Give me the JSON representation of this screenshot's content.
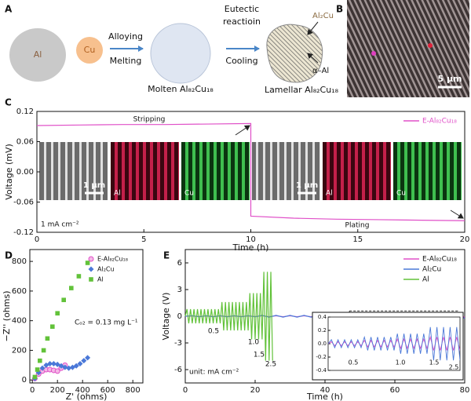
{
  "schematic": {
    "panel": "A",
    "al": "Al",
    "cu": "Cu",
    "alloying": "Alloying",
    "melting": "Melting",
    "molten": "Molten Al₈₂Cu₁₈",
    "eutectic": [
      "Eutectic",
      "reactioin"
    ],
    "cooling": "Cooling",
    "lamellar": "Lamellar Al₈₂Cu₁₈",
    "phase_al2cu": "Al₂Cu",
    "phase_al": "α–Al"
  },
  "micrograph": {
    "panel": "B",
    "scale_bar": "5 μm"
  },
  "chart_data": [
    {
      "type": "line",
      "panel": "C",
      "xlabel": "Time (h)",
      "ylabel": "Voltage (mV)",
      "xlim": [
        0,
        20
      ],
      "ylim": [
        -0.12,
        0.12
      ],
      "xticks": [
        0,
        5,
        10,
        15,
        20
      ],
      "yticks": [
        0.12,
        0.06,
        {
          "value": 0,
          "label": "0.00"
        },
        -0.06,
        -0.12
      ],
      "legend": "upper right",
      "x": [
        0,
        2,
        4,
        6,
        8,
        10,
        10,
        12,
        14,
        16,
        18,
        20
      ],
      "series": [
        {
          "name": "E-Al₈₂Cu₁₈",
          "color": "#e050c8",
          "values": [
            0.092,
            0.093,
            0.094,
            0.094,
            0.095,
            0.096,
            -0.088,
            -0.092,
            -0.094,
            -0.095,
            -0.096,
            -0.097
          ]
        }
      ],
      "annotations": [
        "Stripping",
        "Plating",
        "1 mA cm⁻²"
      ],
      "inset_labels": [
        "1 μm",
        "Al",
        "Cu",
        "1 μm",
        "Al",
        "Cu"
      ]
    },
    {
      "type": "scatter",
      "panel": "D",
      "xlabel": "Z' (ohms)",
      "ylabel": "−Z'' (ohms)",
      "xlim": [
        -20,
        880
      ],
      "ylim": [
        -20,
        880
      ],
      "xticks": [
        0,
        200,
        400,
        600,
        800
      ],
      "yticks": [
        0,
        200,
        400,
        600,
        800
      ],
      "legend": "upper right",
      "series": [
        {
          "name": "E-Al₈₂Cu₁₈",
          "color": "#e050c8",
          "marker": "circle",
          "x": [
            20,
            50,
            80,
            110,
            140,
            170,
            200,
            230,
            260
          ],
          "values": [
            10,
            40,
            60,
            70,
            70,
            65,
            60,
            80,
            100
          ]
        },
        {
          "name": "Al₂Cu",
          "color": "#4a78d8",
          "marker": "diamond",
          "x": [
            20,
            50,
            80,
            110,
            140,
            170,
            200,
            230,
            260,
            290,
            320,
            350,
            380,
            410,
            440
          ],
          "values": [
            10,
            50,
            80,
            100,
            110,
            110,
            105,
            95,
            85,
            80,
            85,
            95,
            110,
            130,
            150
          ]
        },
        {
          "name": "Al",
          "color": "#62c23a",
          "marker": "square",
          "x": [
            20,
            40,
            60,
            90,
            120,
            160,
            200,
            250,
            310,
            370,
            440
          ],
          "values": [
            20,
            70,
            130,
            200,
            280,
            360,
            450,
            540,
            620,
            700,
            790
          ]
        }
      ],
      "annotations": [
        "Cₒ₂ = 0.13 mg L⁻¹"
      ]
    },
    {
      "type": "line",
      "panel": "E",
      "xlabel": "Time (h)",
      "ylabel": "Voltage (V)",
      "xlim": [
        0,
        80
      ],
      "ylim": [
        -7.5,
        7.5
      ],
      "xticks": [
        0,
        20,
        40,
        60,
        80
      ],
      "yticks": [
        6,
        3,
        0,
        -3,
        -6
      ],
      "legend": "upper right",
      "series": [
        {
          "name": "E-Al₈₂Cu₁₈",
          "color": "#e050c8",
          "x": [
            0,
            2,
            4,
            6,
            8,
            10,
            12,
            14,
            16,
            18,
            20,
            22,
            24,
            26,
            28,
            30,
            32,
            34,
            36,
            38,
            40,
            42,
            44,
            46,
            48,
            50,
            52,
            54,
            56,
            58,
            60,
            62,
            64,
            66,
            68,
            70,
            72,
            74,
            76,
            78,
            80
          ],
          "values": [
            0,
            0.03,
            -0.03,
            0.03,
            -0.03,
            0.03,
            -0.03,
            0.03,
            -0.03,
            0.03,
            -0.03,
            0.05,
            -0.05,
            0.05,
            -0.05,
            0.05,
            -0.05,
            0.05,
            -0.05,
            0.05,
            -0.05,
            0.07,
            -0.07,
            0.07,
            -0.07,
            0.07,
            -0.07,
            0.07,
            -0.07,
            0.07,
            -0.07,
            0.1,
            -0.1,
            0.1,
            -0.1,
            0.1,
            -0.1,
            0.1,
            -0.1,
            0.1,
            -0.1
          ]
        },
        {
          "name": "Al₂Cu",
          "color": "#4a78d8",
          "x": [
            0,
            2,
            4,
            6,
            8,
            10,
            12,
            14,
            16,
            18,
            20,
            22,
            24,
            26,
            28,
            30,
            32,
            34,
            36,
            38,
            40,
            42,
            44,
            46,
            48,
            50,
            52,
            54,
            56,
            58,
            60,
            62,
            64,
            66,
            68,
            70,
            72,
            74,
            76,
            78,
            80
          ],
          "values": [
            0,
            0.06,
            -0.06,
            0.06,
            -0.06,
            0.06,
            -0.06,
            0.06,
            -0.06,
            0.06,
            -0.06,
            0.1,
            -0.1,
            0.1,
            -0.1,
            0.1,
            -0.1,
            0.1,
            -0.1,
            0.1,
            -0.1,
            0.15,
            -0.15,
            0.15,
            -0.15,
            0.15,
            -0.15,
            0.15,
            -0.15,
            0.15,
            -0.15,
            0.25,
            -0.25,
            0.25,
            -0.25,
            0.25,
            -0.25,
            0.25,
            -0.25,
            0.25,
            -0.25
          ]
        },
        {
          "name": "Al",
          "color": "#62c23a",
          "x": [
            0,
            0.5,
            1,
            1.5,
            2,
            2.5,
            3,
            3.5,
            4,
            4.5,
            5,
            5.5,
            6,
            6.5,
            7,
            7.5,
            8,
            8.5,
            9,
            9.5,
            10,
            10.5,
            11,
            11.5,
            12,
            12.5,
            13,
            13.5,
            14,
            14.5,
            15,
            15.5,
            16,
            16.5,
            17,
            17.5,
            18,
            18.5,
            19,
            19.5,
            20,
            20.5,
            21,
            21.5,
            22,
            22.5,
            23,
            23.5,
            24,
            24.5,
            25
          ],
          "values": [
            0,
            0.8,
            -0.8,
            0.8,
            -0.8,
            0.8,
            -0.8,
            0.8,
            -0.8,
            0.8,
            -0.8,
            0.8,
            -0.8,
            0.8,
            -0.8,
            0.8,
            -0.8,
            0.8,
            -0.8,
            0.8,
            -0.8,
            1.6,
            -1.6,
            1.6,
            -1.6,
            1.6,
            -1.6,
            1.6,
            -1.6,
            1.6,
            -1.6,
            1.6,
            -1.6,
            1.6,
            -1.6,
            1.6,
            -1.6,
            2.6,
            -2.6,
            2.6,
            -2.6,
            2.6,
            -2.6,
            2.6,
            -2.6,
            5,
            -5,
            5,
            -5,
            5,
            -5
          ]
        }
      ],
      "annotations": [
        "unit: mA cm⁻²"
      ],
      "stage_labels": [
        "0.5",
        "1.0",
        "1.5",
        "2.5"
      ],
      "inset": {
        "xlim": [
          0,
          80
        ],
        "ylim": [
          -0.4,
          0.4
        ],
        "yticks": [
          0.4,
          0.2,
          {
            "value": 0,
            "label": "0.0"
          },
          -0.2,
          -0.4
        ],
        "stage_labels": [
          "0.5",
          "1.0",
          "1.5",
          "2.5"
        ]
      }
    }
  ]
}
